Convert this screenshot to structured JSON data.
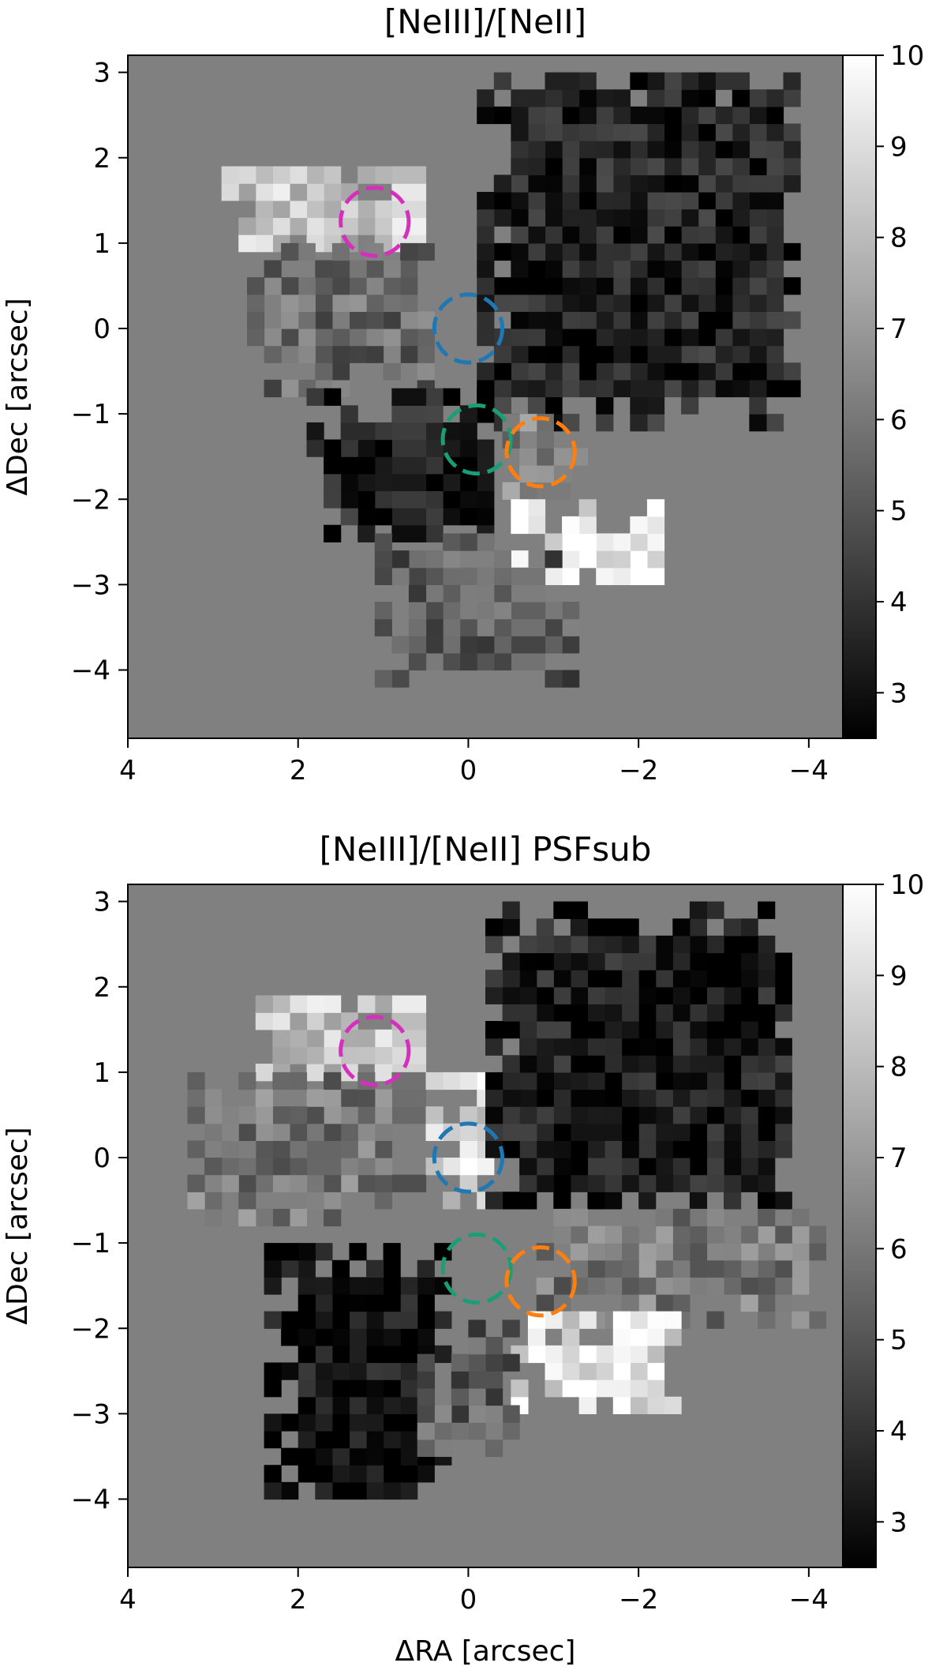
{
  "chart_data": [
    {
      "type": "heatmap",
      "title": "[NeIII]/[NeII]",
      "xlabel": "",
      "ylabel": "ΔDec [arcsec]",
      "xlim": [
        4,
        -4.4
      ],
      "ylim": [
        -4.8,
        3.2
      ],
      "x_ticks": [
        4,
        2,
        0,
        -2,
        -4
      ],
      "x_tick_labels": [
        "4",
        "2",
        "0",
        "−2",
        "−4"
      ],
      "y_ticks": [
        3,
        2,
        1,
        0,
        -1,
        -2,
        -3,
        -4
      ],
      "y_tick_labels": [
        "3",
        "2",
        "1",
        "0",
        "−1",
        "−2",
        "−3",
        "−4"
      ],
      "colormap": "gray",
      "background_color": "#808080",
      "colorbar": {
        "range": [
          2.5,
          10
        ],
        "ticks": [
          10,
          9,
          8,
          7,
          6,
          5,
          4,
          3
        ],
        "tick_labels": [
          "10",
          "9",
          "8",
          "7",
          "6",
          "5",
          "4",
          "3"
        ]
      },
      "apertures": [
        {
          "x": 1.1,
          "y": 1.25,
          "radius": 0.4,
          "color": "#d62fbd"
        },
        {
          "x": 0.0,
          "y": 0.0,
          "radius": 0.4,
          "color": "#1f77b4"
        },
        {
          "x": -0.1,
          "y": -1.3,
          "radius": 0.4,
          "color": "#1a9e77"
        },
        {
          "x": -0.85,
          "y": -1.45,
          "radius": 0.4,
          "color": "#ff7f0e"
        }
      ],
      "regions": [
        {
          "desc": "upper-left bright",
          "x": [
            0.5,
            2.8
          ],
          "y": [
            0.9,
            1.9
          ],
          "level": 8.3
        },
        {
          "desc": "central left",
          "x": [
            0.4,
            2.5
          ],
          "y": [
            -0.8,
            0.9
          ],
          "level": 5.6
        },
        {
          "desc": "upper right dark",
          "x": [
            -3.9,
            -0.1
          ],
          "y": [
            -1.2,
            2.9
          ],
          "level": 3.4
        },
        {
          "desc": "lower left dark",
          "x": [
            -0.3,
            1.8
          ],
          "y": [
            -2.5,
            -0.8
          ],
          "level": 3.3
        },
        {
          "desc": "orange area",
          "x": [
            -1.4,
            -0.3
          ],
          "y": [
            -2.0,
            -1.0
          ],
          "level": 6.4
        },
        {
          "desc": "lower right bright",
          "x": [
            -2.3,
            -0.6
          ],
          "y": [
            -3.0,
            -2.0
          ],
          "level": 9.2
        },
        {
          "desc": "bottom tail",
          "x": [
            -1.3,
            1.0
          ],
          "y": [
            -4.2,
            -2.5
          ],
          "level": 5.2
        }
      ]
    },
    {
      "type": "heatmap",
      "title": "[NeIII]/[NeII] PSFsub",
      "xlabel": "ΔRA [arcsec]",
      "ylabel": "ΔDec [arcsec]",
      "xlim": [
        4,
        -4.4
      ],
      "ylim": [
        -4.8,
        3.2
      ],
      "x_ticks": [
        4,
        2,
        0,
        -2,
        -4
      ],
      "x_tick_labels": [
        "4",
        "2",
        "0",
        "−2",
        "−4"
      ],
      "y_ticks": [
        3,
        2,
        1,
        0,
        -1,
        -2,
        -3,
        -4
      ],
      "y_tick_labels": [
        "3",
        "2",
        "1",
        "0",
        "−1",
        "−2",
        "−3",
        "−4"
      ],
      "colormap": "gray",
      "background_color": "#808080",
      "colorbar": {
        "range": [
          2.5,
          10
        ],
        "ticks": [
          10,
          9,
          8,
          7,
          6,
          5,
          4,
          3
        ],
        "tick_labels": [
          "10",
          "9",
          "8",
          "7",
          "6",
          "5",
          "4",
          "3"
        ]
      },
      "apertures": [
        {
          "x": 1.1,
          "y": 1.25,
          "radius": 0.4,
          "color": "#d62fbd"
        },
        {
          "x": 0.0,
          "y": 0.0,
          "radius": 0.4,
          "color": "#1f77b4"
        },
        {
          "x": -0.1,
          "y": -1.3,
          "radius": 0.4,
          "color": "#1a9e77"
        },
        {
          "x": -0.85,
          "y": -1.45,
          "radius": 0.4,
          "color": "#ff7f0e"
        }
      ],
      "regions": [
        {
          "desc": "upper-left bright",
          "x": [
            0.5,
            2.5
          ],
          "y": [
            0.9,
            1.9
          ],
          "level": 8.3
        },
        {
          "desc": "left area",
          "x": [
            0.5,
            3.3
          ],
          "y": [
            -0.8,
            0.9
          ],
          "level": 6.0
        },
        {
          "desc": "center bright",
          "x": [
            -0.3,
            0.5
          ],
          "y": [
            -0.6,
            0.9
          ],
          "level": 9.0
        },
        {
          "desc": "upper right dark",
          "x": [
            -3.8,
            -0.3
          ],
          "y": [
            -0.6,
            3.0
          ],
          "level": 3.2
        },
        {
          "desc": "right mid textured",
          "x": [
            -4.2,
            -0.8
          ],
          "y": [
            -2.0,
            -0.6
          ],
          "level": 6.0
        },
        {
          "desc": "lower left dark",
          "x": [
            0.2,
            2.3
          ],
          "y": [
            -4.0,
            -1.0
          ],
          "level": 2.9
        },
        {
          "desc": "lower right bright",
          "x": [
            -2.5,
            -0.6
          ],
          "y": [
            -3.0,
            -1.8
          ],
          "level": 9.2
        },
        {
          "desc": "bottom middle",
          "x": [
            -0.6,
            0.6
          ],
          "y": [
            -3.5,
            -2.0
          ],
          "level": 5.3
        }
      ]
    }
  ]
}
